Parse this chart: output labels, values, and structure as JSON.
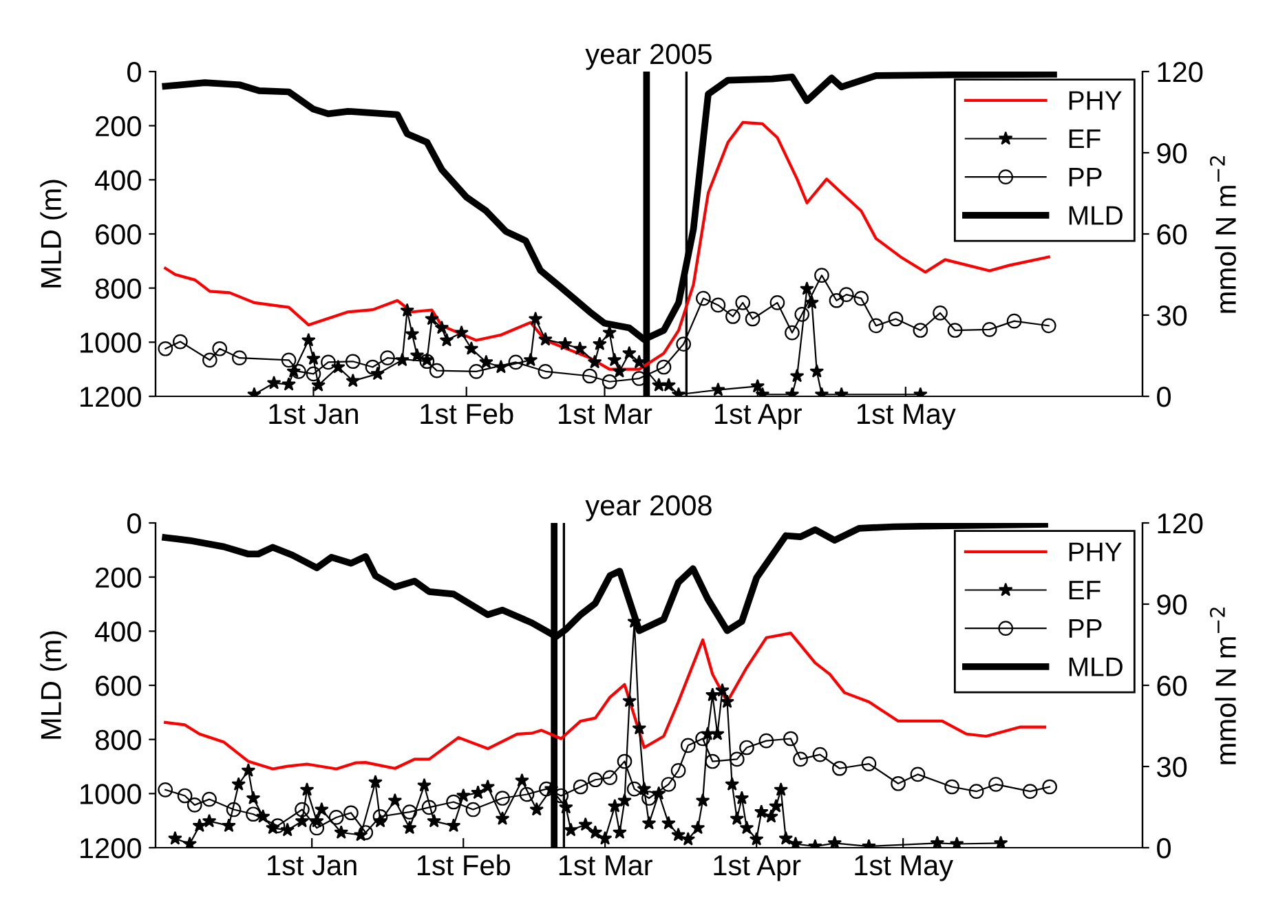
{
  "chart_data": [
    {
      "type": "line",
      "title": "year 2005",
      "ylabel": "MLD (m)",
      "y2label": "mmol N m$^{−2}$",
      "xlim": [
        "2004-11-30",
        "2005-06-18"
      ],
      "xticks": [
        {
          "value": "2005-01-01",
          "label": "1st Jan"
        },
        {
          "value": "2005-02-01",
          "label": "1st Feb"
        },
        {
          "value": "2005-03-01",
          "label": "1st Mar"
        },
        {
          "value": "2005-04-01",
          "label": "1st Apr"
        },
        {
          "value": "2005-05-01",
          "label": "1st May"
        }
      ],
      "ylim": [
        1200,
        0
      ],
      "yticks": [
        0,
        200,
        400,
        600,
        800,
        1000,
        1200
      ],
      "y2lim": [
        0,
        120
      ],
      "y2ticks": [
        0,
        30,
        60,
        90,
        120
      ],
      "grid": false,
      "legend": "top right",
      "ref_lines": [
        {
          "axis": "x",
          "value": "2005-03-09T12:00",
          "color": "#000000"
        },
        {
          "axis": "x",
          "value": "2005-03-17T14:00",
          "color": "#000000"
        }
      ],
      "series": [
        {
          "name": "PHY",
          "color": "#ff0000",
          "axis": "y2",
          "marker": "none",
          "x": [
            "2004-12-02",
            "2004-12-04",
            "2004-12-08",
            "2004-12-11",
            "2004-12-15",
            "2004-12-20",
            "2004-12-27",
            "2004-12-31",
            "2005-01-08",
            "2005-01-13",
            "2005-01-18",
            "2005-01-21",
            "2005-01-25",
            "2005-01-27",
            "2005-02-03",
            "2005-02-08",
            "2005-02-14",
            "2005-02-17",
            "2005-02-26",
            "2005-03-02",
            "2005-03-08",
            "2005-03-13",
            "2005-03-16",
            "2005-03-19",
            "2005-03-22",
            "2005-03-26",
            "2005-03-29",
            "2005-04-02",
            "2005-04-05",
            "2005-04-09",
            "2005-04-11",
            "2005-04-15",
            "2005-04-18",
            "2005-04-22",
            "2005-04-25",
            "2005-04-30",
            "2005-05-05",
            "2005-05-09",
            "2005-05-18",
            "2005-05-22",
            "2005-05-30"
          ],
          "values": [
            47.3,
            45,
            43,
            38.8,
            38.3,
            34.6,
            32.9,
            26.4,
            31.2,
            32,
            35.4,
            31.2,
            31.9,
            26.1,
            20.7,
            22.7,
            27.3,
            20.7,
            14.2,
            10,
            10,
            15.9,
            24.4,
            41.3,
            75.2,
            93.9,
            101.2,
            100.7,
            95.6,
            80.3,
            71.5,
            80.3,
            75.2,
            68.5,
            58.3,
            51.5,
            45.9,
            50.5,
            46.4,
            48.4,
            51.5
          ]
        },
        {
          "name": "EF",
          "color": "#000000",
          "axis": "y2",
          "marker": "star",
          "x": [
            "2004-12-20",
            "2004-12-24",
            "2004-12-27",
            "2004-12-28",
            "2004-12-31",
            "2005-01-01",
            "2005-01-02",
            "2005-01-06",
            "2005-01-09",
            "2005-01-14",
            "2005-01-19",
            "2005-01-20",
            "2005-01-21",
            "2005-01-22",
            "2005-01-24",
            "2005-01-25",
            "2005-01-27",
            "2005-01-28",
            "2005-01-31",
            "2005-02-02",
            "2005-02-05",
            "2005-02-08",
            "2005-02-14",
            "2005-02-15",
            "2005-02-17",
            "2005-02-21",
            "2005-02-24",
            "2005-02-27",
            "2005-02-28",
            "2005-03-02",
            "2005-03-03",
            "2005-03-04",
            "2005-03-06",
            "2005-03-08",
            "2005-03-12",
            "2005-03-14",
            "2005-03-16",
            "2005-03-24",
            "2005-04-01",
            "2005-04-02",
            "2005-04-08",
            "2005-04-09",
            "2005-04-11",
            "2005-04-12",
            "2005-04-13",
            "2005-04-14",
            "2005-04-18",
            "2005-05-04"
          ],
          "values": [
            0.7,
            4.9,
            4.4,
            9.2,
            20.7,
            13.9,
            4.1,
            10.8,
            5.7,
            8.3,
            13.4,
            31.7,
            23,
            15.1,
            13.4,
            28.6,
            25.3,
            20.7,
            23.5,
            17.6,
            12.6,
            10.8,
            13.4,
            28.6,
            21,
            19.3,
            17.6,
            12.6,
            19.3,
            23.5,
            13.4,
            9.2,
            15.9,
            12.6,
            4.1,
            4.1,
            0.7,
            2.4,
            3.7,
            0.7,
            0.7,
            7.5,
            39.7,
            34.6,
            9.2,
            0.7,
            0.7,
            0.7
          ]
        },
        {
          "name": "PP",
          "color": "#000000",
          "axis": "y2",
          "marker": "circle",
          "x": [
            "2004-12-02",
            "2004-12-05",
            "2004-12-11",
            "2004-12-13",
            "2004-12-17",
            "2004-12-27",
            "2004-12-29",
            "2005-01-01",
            "2005-01-04",
            "2005-01-09",
            "2005-01-13",
            "2005-01-16",
            "2005-01-24",
            "2005-01-26",
            "2005-02-03",
            "2005-02-11",
            "2005-02-17",
            "2005-02-26",
            "2005-03-02",
            "2005-03-08",
            "2005-03-13",
            "2005-03-17",
            "2005-03-21",
            "2005-03-24",
            "2005-03-27",
            "2005-03-29",
            "2005-03-31",
            "2005-04-05",
            "2005-04-08",
            "2005-04-10",
            "2005-04-14",
            "2005-04-17",
            "2005-04-19",
            "2005-04-22",
            "2005-04-25",
            "2005-04-29",
            "2005-05-04",
            "2005-05-08",
            "2005-05-11",
            "2005-05-18",
            "2005-05-23",
            "2005-05-30"
          ],
          "values": [
            17.6,
            20.2,
            13.4,
            17.6,
            14.2,
            13.4,
            9.2,
            8.3,
            12.6,
            12.9,
            10.8,
            14.2,
            12.9,
            9.5,
            9.2,
            12.6,
            9.2,
            7.5,
            5.4,
            6.6,
            10.8,
            19.3,
            36.2,
            33.7,
            29.5,
            34.6,
            28.6,
            34.6,
            23.5,
            30.3,
            44.7,
            35.4,
            37.6,
            36.2,
            26.1,
            28.6,
            24.4,
            30.8,
            24.4,
            24.7,
            27.8,
            26.1
          ]
        },
        {
          "name": "MLD",
          "color": "#000000",
          "axis": "y",
          "marker": "none",
          "x": [
            "2004-12-02",
            "2004-12-10",
            "2004-12-17",
            "2004-12-21",
            "2004-12-27",
            "2005-01-01",
            "2005-01-04",
            "2005-01-08",
            "2005-01-18",
            "2005-01-20",
            "2005-01-24",
            "2005-01-27",
            "2005-02-01",
            "2005-02-05",
            "2005-02-09",
            "2005-02-13",
            "2005-02-16",
            "2005-02-20",
            "2005-02-26",
            "2005-03-01",
            "2005-03-06",
            "2005-03-09",
            "2005-03-13",
            "2005-03-16",
            "2005-03-19",
            "2005-03-22",
            "2005-03-26",
            "2005-04-04",
            "2005-04-08",
            "2005-04-11",
            "2005-04-16",
            "2005-04-18",
            "2005-04-25",
            "2005-05-12",
            "2005-05-31"
          ],
          "values": [
            54,
            41,
            49,
            71,
            75,
            139,
            156,
            147,
            159,
            230,
            261,
            362,
            464,
            515,
            591,
            625,
            735,
            795,
            888,
            930,
            947,
            990,
            956,
            854,
            583,
            83,
            32,
            27,
            20,
            108,
            24,
            57,
            15,
            12,
            10
          ]
        }
      ]
    },
    {
      "type": "line",
      "title": "year 2008",
      "ylabel": "MLD (m)",
      "y2label": "mmol N m$^{−2}$",
      "xlim": [
        "2007-11-30",
        "2008-06-19"
      ],
      "xticks": [
        {
          "value": "2008-01-01",
          "label": "1st Jan"
        },
        {
          "value": "2008-02-01",
          "label": "1st Feb"
        },
        {
          "value": "2008-03-01",
          "label": "1st Mar"
        },
        {
          "value": "2008-04-01",
          "label": "1st Apr"
        },
        {
          "value": "2008-05-01",
          "label": "1st May"
        }
      ],
      "ylim": [
        1200,
        0
      ],
      "yticks": [
        0,
        200,
        400,
        600,
        800,
        1000,
        1200
      ],
      "y2lim": [
        0,
        120
      ],
      "y2ticks": [
        0,
        30,
        60,
        90,
        120
      ],
      "grid": false,
      "legend": "top right",
      "ref_lines": [
        {
          "axis": "x",
          "value": "2008-02-19T14:00",
          "color": "#000000"
        },
        {
          "axis": "x",
          "value": "2008-02-21T14:00",
          "color": "#000000"
        }
      ],
      "series": [
        {
          "name": "PHY",
          "color": "#ff0000",
          "axis": "y2",
          "marker": "none",
          "x": [
            "2007-12-02",
            "2007-12-06",
            "2007-12-09",
            "2007-12-14",
            "2007-12-19",
            "2007-12-24",
            "2007-12-27",
            "2007-12-31",
            "2008-01-06",
            "2008-01-10",
            "2008-01-12",
            "2008-01-18",
            "2008-01-22",
            "2008-01-25",
            "2008-01-31",
            "2008-02-06",
            "2008-02-12",
            "2008-02-15",
            "2008-02-17",
            "2008-02-21",
            "2008-02-25",
            "2008-02-28",
            "2008-03-02",
            "2008-03-05",
            "2008-03-09",
            "2008-03-13",
            "2008-03-16",
            "2008-03-21",
            "2008-03-23",
            "2008-03-26",
            "2008-03-30",
            "2008-04-03",
            "2008-04-08",
            "2008-04-13",
            "2008-04-16",
            "2008-04-19",
            "2008-04-24",
            "2008-04-30",
            "2008-05-09",
            "2008-05-14",
            "2008-05-18",
            "2008-05-25",
            "2008-05-30"
          ],
          "values": [
            46.3,
            45.4,
            42,
            39,
            31.9,
            29.1,
            30.1,
            30.9,
            29.1,
            31.4,
            31.5,
            29.3,
            32.7,
            32.7,
            40.7,
            36.6,
            42,
            42.3,
            43.4,
            40.3,
            46.8,
            47.9,
            55.6,
            60.3,
            37,
            41.2,
            53.9,
            76.8,
            64.1,
            53.9,
            66.6,
            77.6,
            79.3,
            68.3,
            64.1,
            57.3,
            53.9,
            46.8,
            46.8,
            42,
            41.2,
            44.6,
            44.6
          ]
        },
        {
          "name": "EF",
          "color": "#000000",
          "axis": "y2",
          "marker": "star",
          "x": [
            "2007-12-04",
            "2007-12-07",
            "2007-12-09",
            "2007-12-11",
            "2007-12-15",
            "2007-12-17",
            "2007-12-19",
            "2007-12-20",
            "2007-12-22",
            "2007-12-24",
            "2007-12-27",
            "2007-12-30",
            "2007-12-31",
            "2008-01-02",
            "2008-01-03",
            "2008-01-07",
            "2008-01-11",
            "2008-01-14",
            "2008-01-15",
            "2008-01-18",
            "2008-01-21",
            "2008-01-24",
            "2008-01-26",
            "2008-01-30",
            "2008-02-01",
            "2008-02-04",
            "2008-02-06",
            "2008-02-09",
            "2008-02-13",
            "2008-02-16",
            "2008-02-19",
            "2008-02-22",
            "2008-02-23",
            "2008-02-26",
            "2008-02-28",
            "2008-03-01",
            "2008-03-03",
            "2008-03-04",
            "2008-03-05",
            "2008-03-06",
            "2008-03-07",
            "2008-03-08",
            "2008-03-09",
            "2008-03-10",
            "2008-03-12",
            "2008-03-14",
            "2008-03-16",
            "2008-03-18",
            "2008-03-20",
            "2008-03-21",
            "2008-03-22",
            "2008-03-23",
            "2008-03-24",
            "2008-03-25",
            "2008-03-26",
            "2008-03-27",
            "2008-03-28",
            "2008-03-29",
            "2008-03-30",
            "2008-04-01",
            "2008-04-02",
            "2008-04-04",
            "2008-04-05",
            "2008-04-06",
            "2008-04-07",
            "2008-04-09",
            "2008-04-13",
            "2008-04-17",
            "2008-04-24",
            "2008-05-08",
            "2008-05-12",
            "2008-05-21"
          ],
          "values": [
            3.4,
            1.4,
            8.1,
            9.8,
            8.1,
            23.4,
            28.5,
            18.3,
            11.5,
            7.3,
            6.5,
            9.8,
            21.4,
            9.8,
            14.1,
            5.6,
            4.7,
            24.2,
            9.8,
            17.4,
            7.3,
            23,
            9.8,
            8.1,
            19.2,
            20.3,
            22.5,
            10.7,
            24.8,
            14.1,
            21.7,
            14.9,
            6.5,
            8.5,
            5.6,
            3.4,
            15.3,
            5.6,
            17.4,
            54.2,
            83.5,
            44.1,
            21.7,
            9,
            20,
            9,
            4.7,
            3.1,
            7.3,
            17.4,
            42,
            56.4,
            42,
            58.1,
            53.9,
            23.4,
            10.7,
            18.3,
            7.3,
            3.1,
            13.2,
            11.5,
            15.3,
            21.4,
            3.4,
            1.4,
            0.5,
            1.7,
            0.5,
            1.7,
            1.4,
            1.7
          ]
        },
        {
          "name": "PP",
          "color": "#000000",
          "axis": "y2",
          "marker": "circle",
          "x": [
            "2007-12-02",
            "2007-12-06",
            "2007-12-08",
            "2007-12-11",
            "2007-12-16",
            "2007-12-20",
            "2007-12-25",
            "2007-12-30",
            "2008-01-02",
            "2008-01-06",
            "2008-01-09",
            "2008-01-12",
            "2008-01-15",
            "2008-01-21",
            "2008-01-25",
            "2008-01-30",
            "2008-02-03",
            "2008-02-09",
            "2008-02-14",
            "2008-02-18",
            "2008-02-21",
            "2008-02-25",
            "2008-02-28",
            "2008-03-02",
            "2008-03-05",
            "2008-03-07",
            "2008-03-10",
            "2008-03-14",
            "2008-03-16",
            "2008-03-18",
            "2008-03-21",
            "2008-03-23",
            "2008-03-28",
            "2008-03-30",
            "2008-04-03",
            "2008-04-08",
            "2008-04-10",
            "2008-04-14",
            "2008-04-18",
            "2008-04-24",
            "2008-04-30",
            "2008-05-04",
            "2008-05-11",
            "2008-05-16",
            "2008-05-20",
            "2008-05-27",
            "2008-05-31"
          ],
          "values": [
            21.4,
            19.2,
            15.8,
            17.9,
            14.1,
            12.4,
            8.1,
            14.1,
            7.3,
            11.2,
            12.9,
            5.6,
            11.5,
            13.2,
            14.9,
            16.9,
            14.1,
            18.3,
            19.7,
            21.7,
            19.2,
            22.5,
            25.1,
            25.9,
            31.9,
            21.7,
            18.3,
            23.4,
            28.5,
            37.8,
            40.3,
            31.9,
            32.7,
            37,
            39.5,
            40.3,
            32.7,
            34.4,
            29.3,
            31,
            23.7,
            27.1,
            22.5,
            20.8,
            23.4,
            20.8,
            22.5
          ]
        },
        {
          "name": "MLD",
          "color": "#000000",
          "axis": "y",
          "marker": "none",
          "x": [
            "2007-12-02",
            "2007-12-07",
            "2007-12-14",
            "2007-12-19",
            "2007-12-21",
            "2007-12-24",
            "2007-12-28",
            "2008-01-02",
            "2008-01-05",
            "2008-01-09",
            "2008-01-12",
            "2008-01-14",
            "2008-01-18",
            "2008-01-22",
            "2008-01-25",
            "2008-01-30",
            "2008-02-06",
            "2008-02-09",
            "2008-02-15",
            "2008-02-20",
            "2008-02-22",
            "2008-02-25",
            "2008-02-28",
            "2008-03-02",
            "2008-03-04",
            "2008-03-06",
            "2008-03-08",
            "2008-03-13",
            "2008-03-16",
            "2008-03-19",
            "2008-03-22",
            "2008-03-26",
            "2008-03-29",
            "2008-04-01",
            "2008-04-07",
            "2008-04-10",
            "2008-04-13",
            "2008-04-17",
            "2008-04-22",
            "2008-04-29",
            "2008-05-30"
          ],
          "values": [
            54,
            65,
            88,
            115,
            115,
            90,
            119,
            166,
            127,
            149,
            124,
            195,
            237,
            215,
            254,
            263,
            339,
            322,
            369,
            420,
            393,
            339,
            297,
            195,
            178,
            288,
            398,
            356,
            220,
            169,
            280,
            398,
            364,
            203,
            47,
            51,
            25,
            64,
            20,
            14,
            5
          ]
        }
      ]
    }
  ]
}
